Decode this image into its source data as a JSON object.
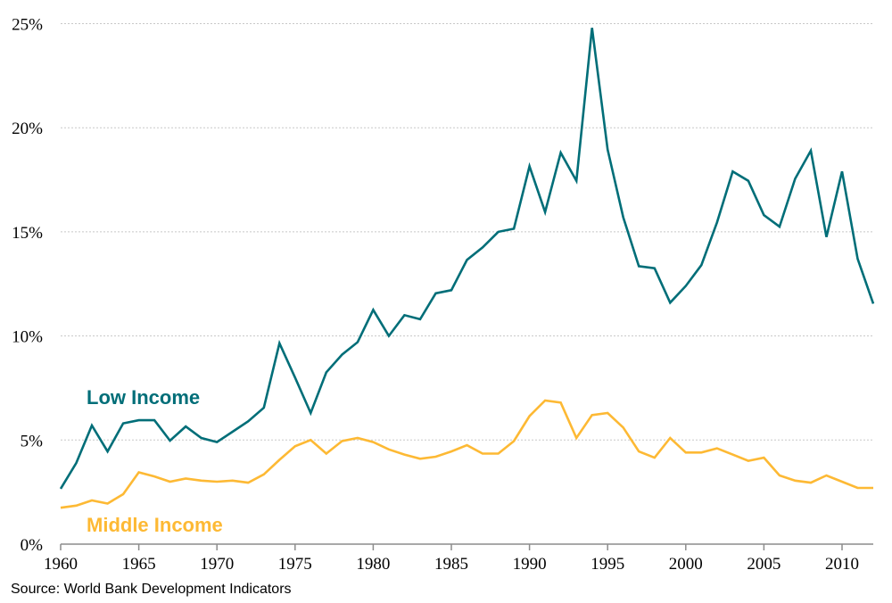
{
  "chart_data": {
    "type": "line",
    "title": "",
    "xlabel": "",
    "ylabel": "",
    "xlim": [
      1960,
      2012
    ],
    "ylim": [
      0,
      25
    ],
    "y_unit": "%",
    "grid": "horizontal dotted",
    "x_ticks": [
      "1960",
      "1965",
      "1970",
      "1975",
      "1980",
      "1985",
      "1990",
      "1995",
      "2000",
      "2005",
      "2010"
    ],
    "y_ticks": [
      "0%",
      "5%",
      "10%",
      "15%",
      "20%",
      "25%"
    ],
    "x": [
      1960,
      1961,
      1962,
      1963,
      1964,
      1965,
      1966,
      1967,
      1968,
      1969,
      1970,
      1971,
      1972,
      1973,
      1974,
      1975,
      1976,
      1977,
      1978,
      1979,
      1980,
      1981,
      1982,
      1983,
      1984,
      1985,
      1986,
      1987,
      1988,
      1989,
      1990,
      1991,
      1992,
      1993,
      1994,
      1995,
      1996,
      1997,
      1998,
      1999,
      2000,
      2001,
      2002,
      2003,
      2004,
      2005,
      2006,
      2007,
      2008,
      2009,
      2010,
      2011,
      2012
    ],
    "series": [
      {
        "name": "Low Income",
        "color": "#006E78",
        "values": [
          2.66,
          3.9,
          5.7,
          4.45,
          5.8,
          5.95,
          5.95,
          4.97,
          5.65,
          5.1,
          4.9,
          5.4,
          5.9,
          6.55,
          9.65,
          8.0,
          6.3,
          8.25,
          9.1,
          9.7,
          11.25,
          10.0,
          11.0,
          10.8,
          12.05,
          12.2,
          13.65,
          14.25,
          15.0,
          15.15,
          18.15,
          15.95,
          18.8,
          17.45,
          24.8,
          18.95,
          15.7,
          13.35,
          13.25,
          11.6,
          12.4,
          13.4,
          15.45,
          17.9,
          17.45,
          15.8,
          15.25,
          17.55,
          18.9,
          14.75,
          17.9,
          13.7,
          11.55
        ]
      },
      {
        "name": "Middle Income",
        "color": "#FDB934",
        "values": [
          1.75,
          1.85,
          2.1,
          1.95,
          2.4,
          3.45,
          3.25,
          3.0,
          3.15,
          3.05,
          3.0,
          3.05,
          2.95,
          3.35,
          4.05,
          4.7,
          5.0,
          4.35,
          4.95,
          5.1,
          4.9,
          4.55,
          4.3,
          4.1,
          4.2,
          4.45,
          4.75,
          4.35,
          4.35,
          4.95,
          6.15,
          6.9,
          6.8,
          5.1,
          6.2,
          6.3,
          5.6,
          4.45,
          4.15,
          5.1,
          4.4,
          4.4,
          4.6,
          4.3,
          4.0,
          4.15,
          3.3,
          3.05,
          2.95,
          3.3,
          3.0,
          2.7,
          2.7
        ]
      }
    ],
    "source": "Source: World Bank Development Indicators"
  }
}
